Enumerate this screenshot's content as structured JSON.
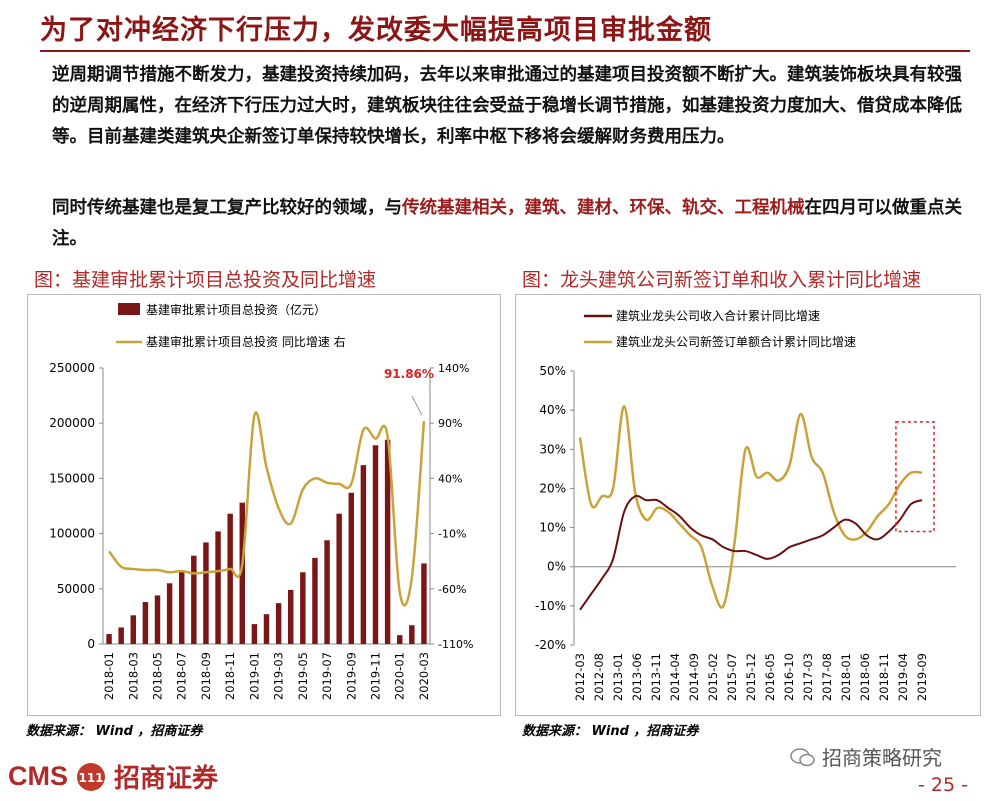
{
  "header": {
    "title": "为了对冲经济下行压力，发改委大幅提高项目审批金额"
  },
  "body": {
    "para1": "逆周期调节措施不断发力，基建投资持续加码，去年以来审批通过的基建项目投资额不断扩大。建筑装饰板块具有较强的逆周期属性，在经济下行压力过大时，建筑板块往往会受益于稳增长调节措施，如基建投资力度加大、借贷成本降低等。目前基建类建筑央企新签订单保持较快增长，利率中枢下移将会缓解财务费用压力。",
    "para2_pre": "同时传统基建也是复工复产比较好的领域，与",
    "para2_hl": "传统基建相关，建筑、建材、环保、轨交、工程机械",
    "para2_post": "在四月可以做重点关注。"
  },
  "colors": {
    "brand": "#8c1515",
    "bar": "#7a1616",
    "gold": "#c9a33a",
    "maroon": "#6b0f0f",
    "box": "#e02020"
  },
  "chart_data": [
    {
      "type": "bar",
      "title": "图：基建审批累计项目总投资及同比增速",
      "categories": [
        "2018-01",
        "2018-02",
        "2018-03",
        "2018-04",
        "2018-05",
        "2018-06",
        "2018-07",
        "2018-08",
        "2018-09",
        "2018-10",
        "2018-11",
        "2018-12",
        "2019-01",
        "2019-02",
        "2019-03",
        "2019-04",
        "2019-05",
        "2019-06",
        "2019-07",
        "2019-08",
        "2019-09",
        "2019-10",
        "2019-11",
        "2019-12",
        "2020-01",
        "2020-02",
        "2020-03"
      ],
      "tick_labels": [
        "2018-01",
        "2018-03",
        "2018-05",
        "2018-07",
        "2018-09",
        "2018-11",
        "2019-01",
        "2019-03",
        "2019-05",
        "2019-07",
        "2019-09",
        "2019-11",
        "2020-01",
        "2020-03"
      ],
      "series": [
        {
          "name": "基建审批累计项目总投资（亿元）",
          "axis": "left",
          "values": [
            9000,
            15000,
            26000,
            38000,
            44000,
            55000,
            66000,
            80000,
            92000,
            102000,
            118000,
            128000,
            18000,
            27000,
            37000,
            49000,
            65000,
            78000,
            94000,
            118000,
            137000,
            162000,
            180000,
            185000,
            8000,
            17000,
            73000
          ]
        },
        {
          "name": "基建审批累计项目总投资 同比增速 右",
          "axis": "right",
          "values": [
            -26,
            -40,
            -42,
            -43,
            -43,
            -45,
            -44,
            -46,
            -45,
            -44,
            -42,
            -38,
            97,
            50,
            13,
            -1,
            30,
            40,
            36,
            35,
            35,
            84,
            76,
            78,
            -63,
            -50,
            91.86
          ]
        }
      ],
      "yleft_ticks": [
        "250000",
        "200000",
        "150000",
        "100000",
        "50000",
        "0"
      ],
      "ylim_left": [
        0,
        250000
      ],
      "yright_ticks": [
        "140%",
        "90%",
        "40%",
        "-10%",
        "-60%",
        "-110%"
      ],
      "ylim_right": [
        -110,
        140
      ],
      "annotation": "91.86%"
    },
    {
      "type": "line",
      "title": "图：龙头建筑公司新签订单和收入累计同比增速",
      "x": [
        "2012-03",
        "2012-06",
        "2012-09",
        "2012-12",
        "2013-03",
        "2013-06",
        "2013-09",
        "2013-12",
        "2014-03",
        "2014-06",
        "2014-09",
        "2014-12",
        "2015-03",
        "2015-06",
        "2015-09",
        "2015-12",
        "2016-03",
        "2016-06",
        "2016-09",
        "2016-12",
        "2017-03",
        "2017-06",
        "2017-09",
        "2017-12",
        "2018-03",
        "2018-06",
        "2018-09",
        "2018-12",
        "2019-03",
        "2019-06",
        "2019-09",
        "2019-12"
      ],
      "tick_labels": [
        "2012-03",
        "2012-08",
        "2013-01",
        "2013-06",
        "2013-11",
        "2014-04",
        "2014-09",
        "2015-02",
        "2015-07",
        "2015-12",
        "2016-05",
        "2016-10",
        "2017-03",
        "2017-08",
        "2018-01",
        "2018-06",
        "2018-11",
        "2019-04",
        "2019-09"
      ],
      "series": [
        {
          "name": "建筑业龙头公司收入合计累计同比增速",
          "color": "maroon",
          "values": [
            -11,
            -7,
            -3,
            2,
            14,
            18,
            17,
            17,
            15,
            13,
            10,
            8,
            7,
            5,
            4,
            4,
            3,
            2,
            3,
            5,
            6,
            7,
            8,
            10,
            12,
            11,
            8,
            7,
            9,
            12,
            16,
            17
          ]
        },
        {
          "name": "建筑业龙头公司新签订单额合计累计同比增速",
          "color": "gold",
          "values": [
            33,
            16,
            18,
            20,
            41,
            19,
            12,
            15,
            14,
            11,
            8,
            5,
            -5,
            -10,
            6,
            30,
            23,
            24,
            22,
            26,
            39,
            28,
            24,
            14,
            8,
            7,
            9,
            13,
            16,
            21,
            24,
            24
          ]
        }
      ],
      "y_ticks": [
        "50%",
        "40%",
        "30%",
        "20%",
        "10%",
        "0%",
        "-10%",
        "-20%"
      ],
      "ylim": [
        -20,
        50
      ],
      "highlight_box": {
        "from": "2019-06",
        "to": "2019-12",
        "ymin": 9,
        "ymax": 37
      }
    }
  ],
  "sources": {
    "left": "数据来源：  Wind ，招商证券",
    "right": "数据来源：  Wind ，招商证券"
  },
  "footer": {
    "cms": "CMS",
    "cms_mark": "111",
    "company": "招商证券",
    "wechat": "招商策略研究",
    "page": "- 25 -"
  }
}
